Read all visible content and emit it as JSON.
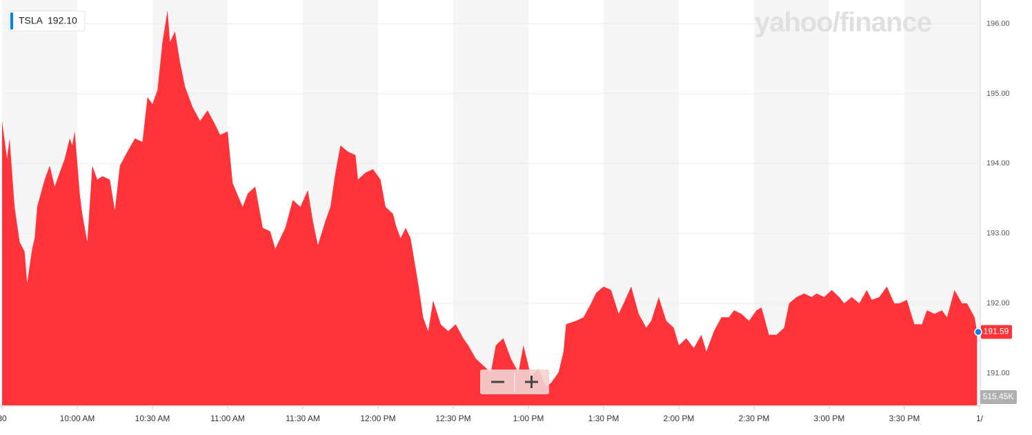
{
  "chart_data": {
    "type": "area",
    "logo": "yahoo/finance",
    "legend_price": "192.10",
    "last_price": 191.59,
    "volume_label": "515.45K",
    "xlim": [
      0,
      390
    ],
    "xticks": [
      {
        "value": 0,
        "label": "30"
      },
      {
        "value": 30,
        "label": "10:00 AM"
      },
      {
        "value": 60,
        "label": "10:30 AM"
      },
      {
        "value": 90,
        "label": "11:00 AM"
      },
      {
        "value": 120,
        "label": "11:30 AM"
      },
      {
        "value": 150,
        "label": "12:00 PM"
      },
      {
        "value": 180,
        "label": "12:30 PM"
      },
      {
        "value": 210,
        "label": "1:00 PM"
      },
      {
        "value": 240,
        "label": "1:30 PM"
      },
      {
        "value": 270,
        "label": "2:00 PM"
      },
      {
        "value": 300,
        "label": "2:30 PM"
      },
      {
        "value": 330,
        "label": "3:00 PM"
      },
      {
        "value": 360,
        "label": "3:30 PM"
      },
      {
        "value": 390,
        "label": "1/"
      }
    ],
    "ylim": [
      190.54,
      196.34
    ],
    "yticks": [
      {
        "value": 191,
        "label": "191.00"
      },
      {
        "value": 192,
        "label": "192.00"
      },
      {
        "value": 193,
        "label": "193.00"
      },
      {
        "value": 194,
        "label": "194.00"
      },
      {
        "value": 195,
        "label": "195.00"
      },
      {
        "value": 196,
        "label": "196.00"
      }
    ],
    "grid": true,
    "x": [
      0,
      2,
      3,
      5,
      7,
      9,
      10,
      12,
      13,
      14,
      17,
      19,
      21,
      23,
      25,
      27,
      28,
      29,
      31,
      32,
      34,
      36,
      38,
      40,
      43,
      45,
      47,
      50,
      53,
      56,
      58,
      60,
      62,
      64,
      66,
      67,
      69,
      71,
      73,
      76,
      79,
      82,
      85,
      87,
      90,
      92,
      96,
      98,
      101,
      104,
      107,
      109,
      111,
      113,
      116,
      119,
      122,
      124,
      126,
      129,
      131,
      133,
      135,
      138,
      141,
      142,
      145,
      148,
      151,
      153,
      156,
      157,
      159,
      161,
      163,
      166,
      168,
      170,
      172,
      175,
      178,
      181,
      184,
      186,
      189,
      192,
      195,
      197,
      200,
      203,
      206,
      208,
      211,
      214,
      217,
      219,
      222,
      224,
      225,
      229,
      232,
      235,
      237,
      240,
      243,
      246,
      248,
      251,
      254,
      257,
      259,
      262,
      265,
      268,
      270,
      273,
      276,
      279,
      281,
      284,
      287,
      290,
      292,
      295,
      298,
      301,
      303,
      306,
      309,
      312,
      314,
      317,
      320,
      323,
      325,
      328,
      331,
      334,
      336,
      339,
      342,
      345,
      347,
      350,
      353,
      356,
      358,
      361,
      364,
      367,
      369,
      372,
      375,
      377,
      380,
      383,
      385,
      388,
      389
    ],
    "series": [
      {
        "name": "TSLA",
        "color": "#ff333a",
        "values": [
          194.61,
          194.07,
          194.36,
          193.38,
          192.88,
          192.74,
          192.29,
          192.78,
          192.93,
          193.38,
          193.77,
          193.97,
          193.67,
          193.87,
          194.07,
          194.36,
          194.26,
          194.46,
          193.57,
          193.28,
          192.88,
          193.97,
          193.77,
          193.82,
          193.77,
          193.33,
          193.97,
          194.17,
          194.36,
          194.31,
          194.95,
          194.85,
          195.05,
          195.74,
          196.19,
          195.74,
          195.89,
          195.45,
          195.1,
          194.81,
          194.61,
          194.76,
          194.56,
          194.41,
          194.46,
          193.72,
          193.38,
          193.57,
          193.67,
          193.08,
          193.03,
          192.78,
          192.93,
          193.08,
          193.48,
          193.38,
          193.62,
          193.18,
          192.83,
          193.18,
          193.38,
          193.87,
          194.26,
          194.17,
          194.12,
          193.77,
          193.87,
          193.92,
          193.77,
          193.38,
          193.28,
          193.13,
          192.93,
          193.08,
          192.93,
          192.29,
          191.8,
          191.6,
          192.04,
          191.7,
          191.6,
          191.7,
          191.5,
          191.4,
          191.21,
          191.11,
          191.01,
          191.4,
          191.5,
          191.21,
          191.01,
          191.4,
          190.96,
          191.06,
          190.81,
          190.86,
          191.01,
          191.31,
          191.7,
          191.75,
          191.8,
          192.0,
          192.15,
          192.24,
          192.19,
          191.85,
          192.0,
          192.24,
          191.85,
          191.65,
          191.75,
          192.09,
          191.75,
          191.65,
          191.4,
          191.5,
          191.36,
          191.55,
          191.31,
          191.6,
          191.8,
          191.8,
          191.9,
          191.85,
          191.75,
          191.9,
          191.94,
          191.55,
          191.55,
          191.65,
          192.0,
          192.09,
          192.14,
          192.09,
          192.14,
          192.09,
          192.19,
          192.09,
          192.0,
          192.09,
          192.0,
          192.19,
          192.05,
          192.09,
          192.24,
          192.0,
          192.0,
          192.05,
          191.7,
          191.7,
          191.9,
          191.85,
          191.9,
          191.8,
          192.19,
          192.0,
          192.0,
          191.8,
          191.59
        ]
      }
    ]
  }
}
